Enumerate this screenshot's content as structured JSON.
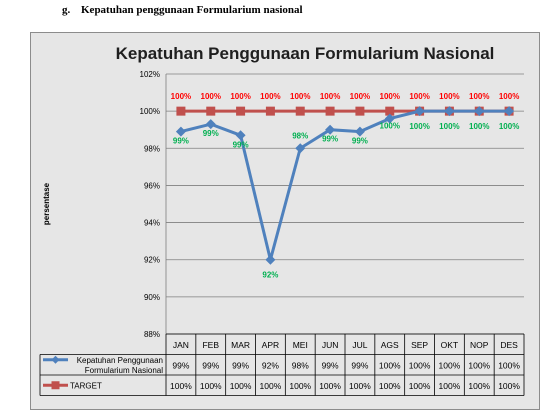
{
  "heading": {
    "number": "g.",
    "text": "Kepatuhan penggunaan Formularium nasional"
  },
  "colors": {
    "chart_border": "#8c8c8c",
    "chart_bg": "#e6e6e6",
    "plot_bg": "#e6e6e6",
    "grid": "#7f7f7f",
    "series_actual": "#4f81bd",
    "series_target": "#c0504d",
    "label_actual": "#00b050",
    "label_target": "#ff0000"
  },
  "chart_data": {
    "type": "line",
    "title": "Kepatuhan Penggunaan Formularium Nasional",
    "ylabel": "persentase",
    "xlabel": "",
    "ylim": [
      88,
      102
    ],
    "yticks": [
      "88%",
      "90%",
      "92%",
      "94%",
      "96%",
      "98%",
      "100%",
      "102%"
    ],
    "ytick_values": [
      88,
      90,
      92,
      94,
      96,
      98,
      100,
      102
    ],
    "grid": true,
    "legend_placement": "data-table",
    "categories": [
      "JAN",
      "FEB",
      "MAR",
      "APR",
      "MEI",
      "JUN",
      "JUL",
      "AGS",
      "SEP",
      "OKT",
      "NOP",
      "DES"
    ],
    "series": [
      {
        "name": "Kepatuhan Penggunaan Formularium Nasional",
        "marker": "diamond",
        "values": [
          98.9,
          99.3,
          98.7,
          92.0,
          98.0,
          99.0,
          98.9,
          99.6,
          100,
          100,
          100,
          100
        ],
        "labels": [
          "99%",
          "99%",
          "99%",
          "92%",
          "98%",
          "99%",
          "99%",
          "100%",
          "100%",
          "100%",
          "100%",
          "100%"
        ],
        "table_values": [
          "99%",
          "99%",
          "99%",
          "92%",
          "98%",
          "99%",
          "99%",
          "100%",
          "100%",
          "100%",
          "100%",
          "100%"
        ]
      },
      {
        "name": "TARGET",
        "marker": "square",
        "values": [
          100,
          100,
          100,
          100,
          100,
          100,
          100,
          100,
          100,
          100,
          100,
          100
        ],
        "labels": [
          "100%",
          "100%",
          "100%",
          "100%",
          "100%",
          "100%",
          "100%",
          "100%",
          "100%",
          "100%",
          "100%",
          "100%"
        ],
        "table_values": [
          "100%",
          "100%",
          "100%",
          "100%",
          "100%",
          "100%",
          "100%",
          "100%",
          "100%",
          "100%",
          "100%",
          "100%"
        ]
      }
    ]
  }
}
